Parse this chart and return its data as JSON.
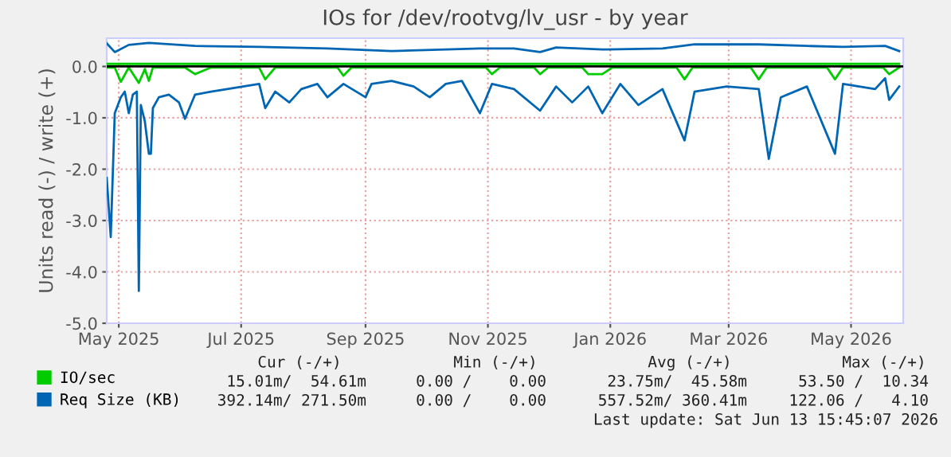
{
  "chart_data": {
    "type": "line",
    "title": "IOs for /dev/rootvg/lv_usr - by year",
    "ylabel": "Units read (-) / write (+)",
    "xlim": [
      "2025-04-25",
      "2026-05-27"
    ],
    "xticks": [
      {
        "value": "2025-05-01",
        "label": "May 2025"
      },
      {
        "value": "2025-07-01",
        "label": "Jul 2025"
      },
      {
        "value": "2025-09-01",
        "label": "Sep 2025"
      },
      {
        "value": "2025-11-01",
        "label": "Nov 2025"
      },
      {
        "value": "2026-01-01",
        "label": "Jan 2026"
      },
      {
        "value": "2026-03-01",
        "label": "Mar 2026"
      },
      {
        "value": "2026-05-01",
        "label": "May 2026"
      }
    ],
    "ylim": [
      -5,
      0.55
    ],
    "yticks": [
      {
        "value": -5,
        "label": "-5.0"
      },
      {
        "value": -4,
        "label": "-4.0"
      },
      {
        "value": -3,
        "label": "-3.0"
      },
      {
        "value": -2,
        "label": "-2.0"
      },
      {
        "value": -1,
        "label": "-1.0"
      },
      {
        "value": 0,
        "label": "0.0"
      }
    ],
    "grid": true,
    "legend": "bottom left",
    "ref_lines": [
      {
        "axis": "y",
        "value": 0,
        "color": "#000000"
      }
    ],
    "series": [
      {
        "color": "#00cc00",
        "x": [
          "2025-04-25",
          "2025-04-29",
          "2025-05-02",
          "2025-05-06",
          "2025-05-11",
          "2025-05-14",
          "2025-05-16",
          "2025-05-18",
          "2025-06-03",
          "2025-06-08",
          "2025-06-16",
          "2025-07-10",
          "2025-07-13",
          "2025-07-18",
          "2025-08-18",
          "2025-08-21",
          "2025-08-25",
          "2025-10-31",
          "2025-11-03",
          "2025-11-07",
          "2025-11-24",
          "2025-11-27",
          "2025-12-01",
          "2025-12-18",
          "2025-12-21",
          "2025-12-28",
          "2026-01-02",
          "2026-02-03",
          "2026-02-07",
          "2026-02-11",
          "2026-03-12",
          "2026-03-16",
          "2026-03-20",
          "2026-04-19",
          "2026-04-23",
          "2026-04-27",
          "2026-05-17",
          "2026-05-20",
          "2026-05-25"
        ],
        "values": [
          -0.02,
          -0.02,
          -0.3,
          -0.02,
          -0.32,
          -0.05,
          -0.28,
          -0.02,
          -0.02,
          -0.15,
          -0.02,
          -0.02,
          -0.25,
          -0.02,
          -0.02,
          -0.18,
          -0.02,
          -0.02,
          -0.15,
          -0.02,
          -0.02,
          -0.15,
          -0.02,
          -0.02,
          -0.15,
          -0.15,
          -0.02,
          -0.02,
          -0.25,
          -0.02,
          -0.02,
          -0.25,
          -0.02,
          -0.02,
          -0.25,
          -0.02,
          -0.02,
          -0.15,
          -0.02
        ]
      },
      {
        "name": "IO/sec",
        "color": "#00cc00",
        "x": [
          "2025-04-25",
          "2025-07-01",
          "2025-10-01",
          "2026-01-01",
          "2026-04-01",
          "2026-05-25"
        ],
        "values": [
          0.05,
          0.05,
          0.05,
          0.05,
          0.05,
          0.05
        ]
      },
      {
        "color": "#0066b3",
        "x": [
          "2025-04-25",
          "2025-04-27",
          "2025-04-29",
          "2025-05-02",
          "2025-05-04",
          "2025-05-06",
          "2025-05-08",
          "2025-05-10",
          "2025-05-11",
          "2025-05-12",
          "2025-05-14",
          "2025-05-16",
          "2025-05-17",
          "2025-05-18",
          "2025-05-21",
          "2025-05-26",
          "2025-05-31",
          "2025-06-03",
          "2025-06-08",
          "2025-06-16",
          "2025-06-24",
          "2025-07-02",
          "2025-07-10",
          "2025-07-13",
          "2025-07-18",
          "2025-07-25",
          "2025-07-31",
          "2025-08-08",
          "2025-08-13",
          "2025-08-21",
          "2025-09-01",
          "2025-09-04",
          "2025-09-14",
          "2025-09-25",
          "2025-10-03",
          "2025-10-11",
          "2025-10-19",
          "2025-10-28",
          "2025-11-03",
          "2025-11-14",
          "2025-11-27",
          "2025-12-05",
          "2025-12-13",
          "2025-12-21",
          "2025-12-28",
          "2026-01-06",
          "2026-01-15",
          "2026-01-27",
          "2026-02-07",
          "2026-02-12",
          "2026-02-28",
          "2026-03-16",
          "2026-03-21",
          "2026-03-27",
          "2026-04-09",
          "2026-04-23",
          "2026-04-27",
          "2026-05-13",
          "2026-05-18",
          "2026-05-20",
          "2026-05-25"
        ],
        "values": [
          -2.17,
          -3.32,
          -0.91,
          -0.6,
          -0.49,
          -0.91,
          -0.55,
          -0.49,
          -4.37,
          -0.75,
          -1.07,
          -1.7,
          -1.7,
          -0.81,
          -0.6,
          -0.55,
          -0.7,
          -1.02,
          -0.55,
          -0.49,
          -0.44,
          -0.39,
          -0.34,
          -0.81,
          -0.49,
          -0.7,
          -0.44,
          -0.34,
          -0.6,
          -0.34,
          -0.6,
          -0.34,
          -0.28,
          -0.39,
          -0.6,
          -0.34,
          -0.28,
          -0.91,
          -0.34,
          -0.44,
          -0.86,
          -0.39,
          -0.7,
          -0.39,
          -0.91,
          -0.34,
          -0.75,
          -0.44,
          -1.44,
          -0.49,
          -0.39,
          -0.44,
          -1.8,
          -0.6,
          -0.39,
          -1.7,
          -0.34,
          -0.44,
          -0.23,
          -0.65,
          -0.39
        ]
      },
      {
        "name": "Req Size (KB)",
        "color": "#0066b3",
        "x": [
          "2025-04-25",
          "2025-04-29",
          "2025-05-06",
          "2025-05-16",
          "2025-06-08",
          "2025-07-10",
          "2025-08-13",
          "2025-09-14",
          "2025-10-11",
          "2025-10-28",
          "2025-11-14",
          "2025-11-27",
          "2025-12-05",
          "2025-12-28",
          "2026-01-27",
          "2026-02-12",
          "2026-03-16",
          "2026-04-09",
          "2026-04-27",
          "2026-05-18",
          "2026-05-25"
        ],
        "values": [
          0.45,
          0.28,
          0.42,
          0.46,
          0.4,
          0.38,
          0.35,
          0.3,
          0.33,
          0.35,
          0.35,
          0.28,
          0.37,
          0.33,
          0.35,
          0.43,
          0.43,
          0.4,
          0.38,
          0.4,
          0.3
        ]
      }
    ],
    "annotations": [
      "Cur (-/+)",
      "Min (-/+)",
      "Avg (-/+)",
      "Max (-/+)",
      "15.01m/  54.61m",
      "0.00 /    0.00",
      "23.75m/  45.58m",
      "53.50 /  10.34",
      "392.14m/ 271.50m",
      "0.00 /    0.00",
      "557.52m/ 360.41m",
      "122.06 /   4.10",
      "Last update: Sat Jun 13 15:45:07 2026"
    ]
  }
}
